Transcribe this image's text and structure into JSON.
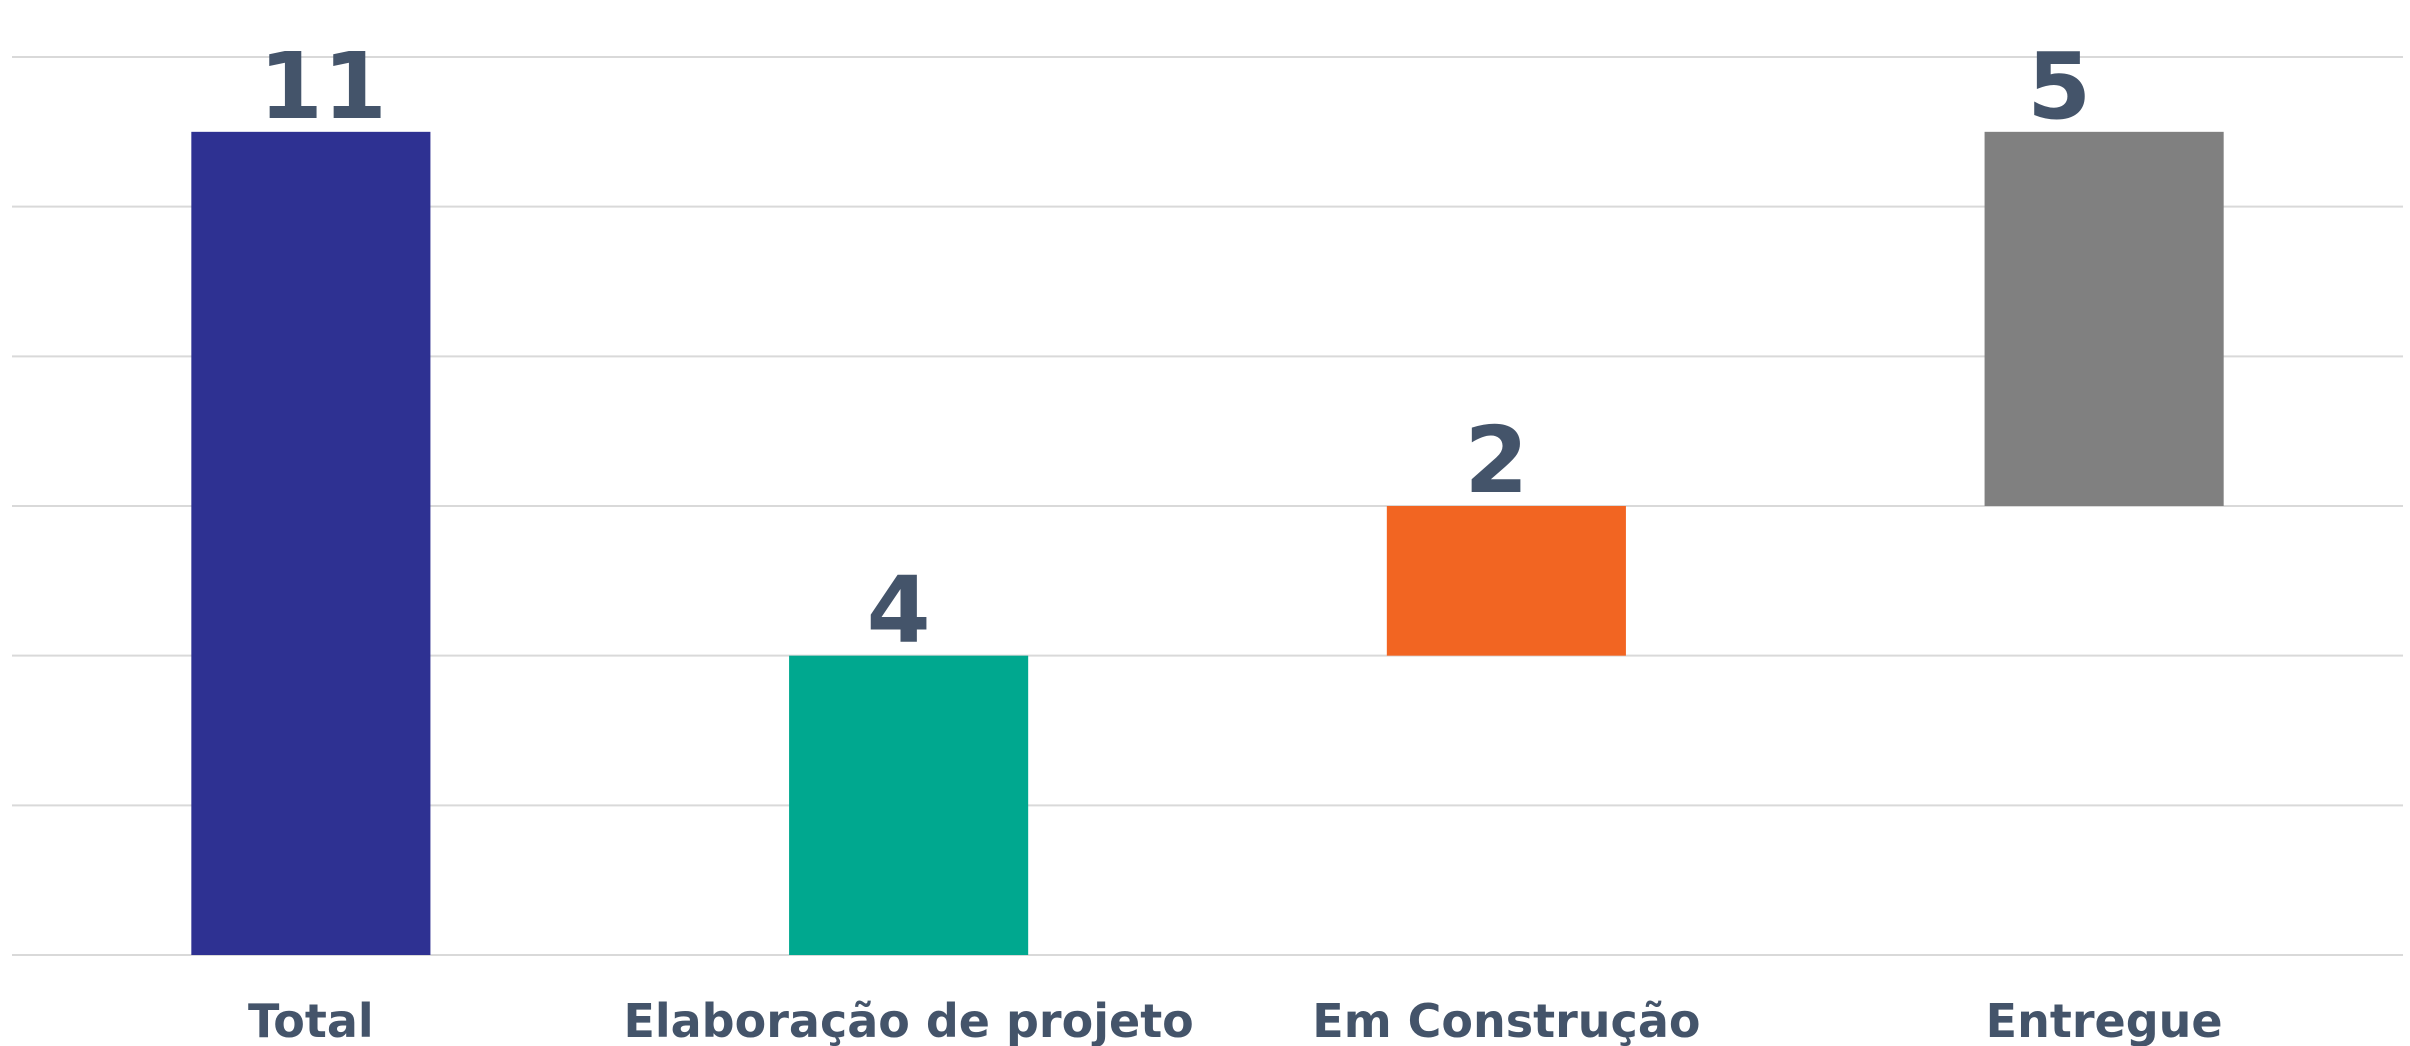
{
  "chart_data": {
    "type": "waterfall",
    "categories": [
      "Total",
      "Elaboração de projeto",
      "Em Construção",
      "Entregue"
    ],
    "values": [
      11,
      4,
      2,
      5
    ],
    "colors": [
      "#2e3192",
      "#00a88f",
      "#f26522",
      "#808080"
    ],
    "ylim": [
      0,
      12
    ],
    "yticks": [
      0,
      2,
      4,
      6,
      8,
      10,
      12
    ],
    "grid": true
  }
}
